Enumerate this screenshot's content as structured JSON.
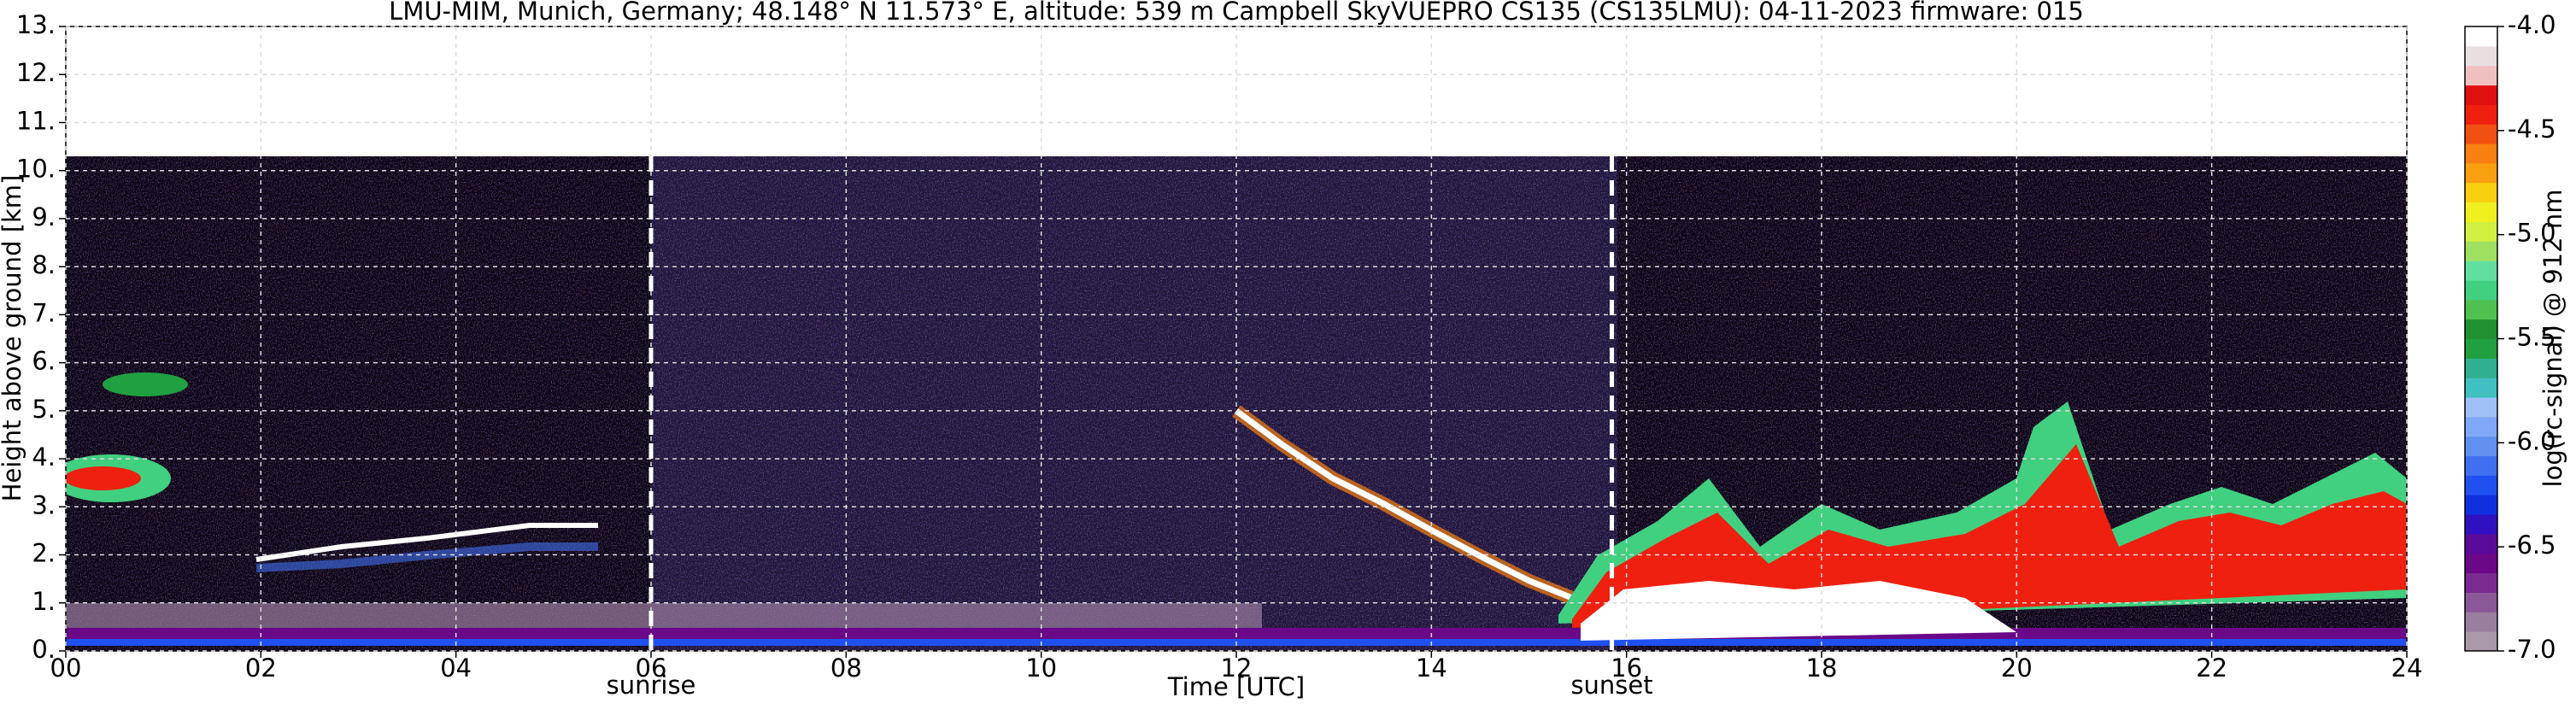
{
  "chart_data": {
    "type": "heatmap",
    "title": "LMU-MIM, Munich, Germany; 48.148° N 11.573° E, altitude: 539 m    Campbell SkyVUEPRO CS135 (CS135LMU): 04-11-2023    firmware: 015",
    "xlabel": "Time [UTC]",
    "ylabel": "Height above ground [km]",
    "xlim": [
      0,
      24
    ],
    "xticks": [
      {
        "value": 0,
        "label": "00"
      },
      {
        "value": 2,
        "label": "02"
      },
      {
        "value": 4,
        "label": "04"
      },
      {
        "value": 6,
        "label": "06"
      },
      {
        "value": 8,
        "label": "08"
      },
      10,
      12,
      14,
      16,
      18,
      20,
      22,
      24
    ],
    "ylim": [
      0,
      13
    ],
    "yticks": [
      {
        "value": 0,
        "label": "0."
      },
      {
        "value": 1,
        "label": "1."
      },
      {
        "value": 2,
        "label": "2."
      },
      {
        "value": 3,
        "label": "3."
      },
      {
        "value": 4,
        "label": "4."
      },
      {
        "value": 5,
        "label": "5."
      },
      {
        "value": 6,
        "label": "6."
      },
      {
        "value": 7,
        "label": "7."
      },
      {
        "value": 8,
        "label": "8."
      },
      {
        "value": 9,
        "label": "9."
      },
      {
        "value": 10,
        "label": "10."
      },
      {
        "value": 11,
        "label": "11."
      },
      {
        "value": 12,
        "label": "12."
      },
      {
        "value": 13,
        "label": "13."
      }
    ],
    "grid": true,
    "annotations": [
      {
        "label": "sunrise",
        "x": 6.0
      },
      {
        "label": "sunset",
        "x": 15.85
      }
    ],
    "colorbar": {
      "label": "log(rc-signal) @ 912 nm",
      "clim": [
        -7,
        -4
      ],
      "ticks": [
        {
          "value": -7,
          "label": "-7.0"
        },
        -6.5,
        {
          "value": -6,
          "label": "-6.0"
        },
        -5.5,
        {
          "value": -5,
          "label": "-5.0"
        },
        -4.5,
        {
          "value": -4,
          "label": "-4.0"
        }
      ],
      "colormap": [
        "#a898a8",
        "#9a7ea0",
        "#8a5898",
        "#7a2a90",
        "#6a0888",
        "#5a0a9a",
        "#3010c0",
        "#1030e0",
        "#2050f0",
        "#4070f0",
        "#6090f0",
        "#80a8f8",
        "#a0c0f8",
        "#40c0c0",
        "#30b090",
        "#20a040",
        "#209030",
        "#50c050",
        "#40d080",
        "#60e0a0",
        "#a0e060",
        "#d0f040",
        "#f0f020",
        "#f8d010",
        "#f8a010",
        "#f88010",
        "#f05010",
        "#f02010",
        "#e01010",
        "#f0c0c0",
        "#e8e0e0",
        "#ffffff"
      ]
    }
  }
}
